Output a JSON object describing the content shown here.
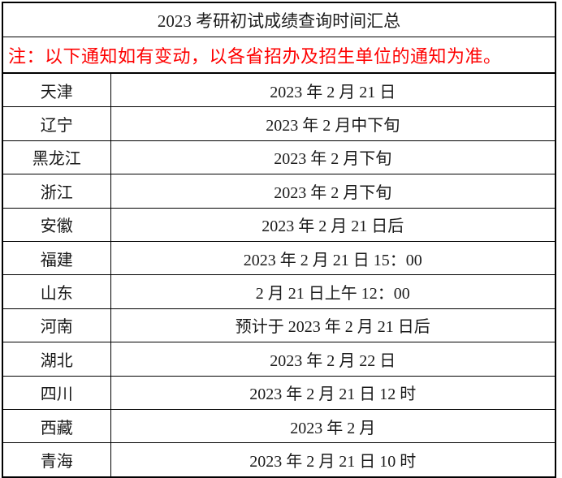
{
  "table": {
    "title": "2023 考研初试成绩查询时间汇总",
    "note": "注：以下通知如有变动，以各省招办及招生单位的通知为准。",
    "colors": {
      "note_text": "#fe0000",
      "body_text": "#1a1a1a",
      "border": "#000000",
      "background": "#ffffff"
    },
    "rows": [
      {
        "province": "天津",
        "time": "2023 年 2 月 21 日"
      },
      {
        "province": "辽宁",
        "time": "2023 年 2 月中下旬"
      },
      {
        "province": "黑龙江",
        "time": "2023 年 2 月下旬"
      },
      {
        "province": "浙江",
        "time": "2023 年 2 月下旬"
      },
      {
        "province": "安徽",
        "time": "2023 年 2 月 21 日后"
      },
      {
        "province": "福建",
        "time": "2023 年 2 月 21 日 15：00"
      },
      {
        "province": "山东",
        "time": "2 月 21 日上午 12：00"
      },
      {
        "province": "河南",
        "time": "预计于 2023 年 2 月 21 日后"
      },
      {
        "province": "湖北",
        "time": "2023 年 2 月 22 日"
      },
      {
        "province": "四川",
        "time": "2023 年 2 月 21 日 12 时"
      },
      {
        "province": "西藏",
        "time": "2023 年 2 月"
      },
      {
        "province": "青海",
        "time": "2023 年 2 月 21 日 10 时"
      }
    ]
  }
}
